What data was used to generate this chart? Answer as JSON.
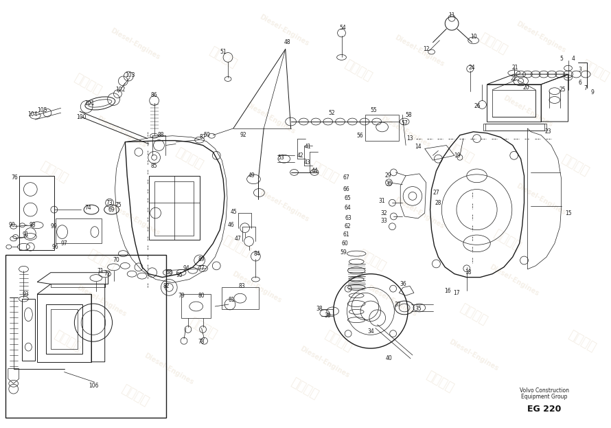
{
  "bg_color": "#ffffff",
  "line_color": "#1a1a1a",
  "fig_width": 8.9,
  "fig_height": 6.23,
  "dpi": 100,
  "footer_text1": "Volvo Construction",
  "footer_text2": "Equipment Group",
  "footer_text3": "EG 220"
}
